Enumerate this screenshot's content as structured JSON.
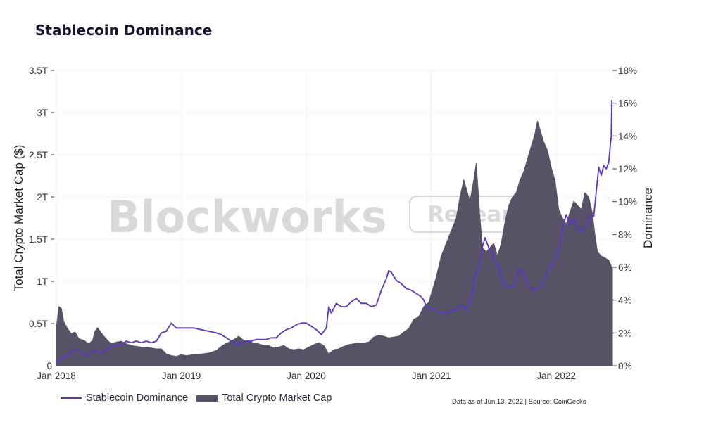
{
  "colors": {
    "market_cap": "#575367",
    "dominance": "#5b33d1",
    "grid": "#edf1f5",
    "watermark": "#d9d9d9"
  },
  "watermark": {
    "brand": "Blockworks",
    "tag": "Research"
  },
  "chart_data": {
    "type": "area+line",
    "title": "Stablecoin Dominance",
    "ylabel_left": "Total Crypto Market Cap ($)",
    "ylabel_right": "Dominance",
    "yticks_left": [
      "0",
      "0.5T",
      "1T",
      "1.5T",
      "2T",
      "2.5T",
      "3T",
      "3.5T"
    ],
    "yticks_right": [
      "0%",
      "2%",
      "4%",
      "6%",
      "8%",
      "10%",
      "12%",
      "14%",
      "16%",
      "18%"
    ],
    "xticks": [
      "Jan 2018",
      "Jan 2019",
      "Jan 2020",
      "Jan 2021",
      "Jan 2022"
    ],
    "ylim_left": [
      0,
      3.5
    ],
    "ylim_right": [
      0,
      18
    ],
    "xlim": [
      2018.0,
      2022.45
    ],
    "series": [
      {
        "name": "Total Crypto Market Cap",
        "type": "area",
        "unit": "T",
        "points": [
          [
            2018.0,
            0.45
          ],
          [
            2018.02,
            0.7
          ],
          [
            2018.04,
            0.68
          ],
          [
            2018.06,
            0.52
          ],
          [
            2018.09,
            0.44
          ],
          [
            2018.12,
            0.38
          ],
          [
            2018.15,
            0.4
          ],
          [
            2018.18,
            0.32
          ],
          [
            2018.22,
            0.3
          ],
          [
            2018.26,
            0.26
          ],
          [
            2018.29,
            0.3
          ],
          [
            2018.31,
            0.41
          ],
          [
            2018.33,
            0.45
          ],
          [
            2018.35,
            0.41
          ],
          [
            2018.38,
            0.35
          ],
          [
            2018.41,
            0.3
          ],
          [
            2018.44,
            0.26
          ],
          [
            2018.48,
            0.28
          ],
          [
            2018.52,
            0.29
          ],
          [
            2018.56,
            0.26
          ],
          [
            2018.6,
            0.24
          ],
          [
            2018.64,
            0.23
          ],
          [
            2018.68,
            0.22
          ],
          [
            2018.72,
            0.22
          ],
          [
            2018.76,
            0.21
          ],
          [
            2018.8,
            0.2
          ],
          [
            2018.84,
            0.2
          ],
          [
            2018.88,
            0.14
          ],
          [
            2018.92,
            0.12
          ],
          [
            2018.96,
            0.11
          ],
          [
            2019.0,
            0.13
          ],
          [
            2019.04,
            0.12
          ],
          [
            2019.1,
            0.13
          ],
          [
            2019.16,
            0.14
          ],
          [
            2019.22,
            0.15
          ],
          [
            2019.28,
            0.18
          ],
          [
            2019.33,
            0.24
          ],
          [
            2019.38,
            0.28
          ],
          [
            2019.42,
            0.31
          ],
          [
            2019.46,
            0.35
          ],
          [
            2019.5,
            0.3
          ],
          [
            2019.54,
            0.29
          ],
          [
            2019.58,
            0.27
          ],
          [
            2019.62,
            0.26
          ],
          [
            2019.66,
            0.24
          ],
          [
            2019.7,
            0.24
          ],
          [
            2019.74,
            0.21
          ],
          [
            2019.78,
            0.22
          ],
          [
            2019.82,
            0.24
          ],
          [
            2019.86,
            0.2
          ],
          [
            2019.9,
            0.19
          ],
          [
            2019.94,
            0.2
          ],
          [
            2019.98,
            0.19
          ],
          [
            2020.02,
            0.22
          ],
          [
            2020.06,
            0.25
          ],
          [
            2020.1,
            0.27
          ],
          [
            2020.14,
            0.24
          ],
          [
            2020.18,
            0.14
          ],
          [
            2020.22,
            0.19
          ],
          [
            2020.26,
            0.2
          ],
          [
            2020.3,
            0.23
          ],
          [
            2020.34,
            0.25
          ],
          [
            2020.38,
            0.26
          ],
          [
            2020.42,
            0.27
          ],
          [
            2020.46,
            0.27
          ],
          [
            2020.5,
            0.28
          ],
          [
            2020.54,
            0.34
          ],
          [
            2020.58,
            0.36
          ],
          [
            2020.62,
            0.35
          ],
          [
            2020.66,
            0.33
          ],
          [
            2020.7,
            0.34
          ],
          [
            2020.74,
            0.35
          ],
          [
            2020.78,
            0.4
          ],
          [
            2020.82,
            0.44
          ],
          [
            2020.86,
            0.55
          ],
          [
            2020.9,
            0.58
          ],
          [
            2020.94,
            0.7
          ],
          [
            2020.98,
            0.75
          ],
          [
            2021.02,
            0.95
          ],
          [
            2021.04,
            1.05
          ],
          [
            2021.08,
            1.3
          ],
          [
            2021.12,
            1.45
          ],
          [
            2021.16,
            1.6
          ],
          [
            2021.2,
            1.75
          ],
          [
            2021.23,
            2.0
          ],
          [
            2021.26,
            2.2
          ],
          [
            2021.28,
            2.1
          ],
          [
            2021.31,
            1.95
          ],
          [
            2021.34,
            2.2
          ],
          [
            2021.36,
            2.4
          ],
          [
            2021.39,
            1.75
          ],
          [
            2021.41,
            1.4
          ],
          [
            2021.44,
            1.35
          ],
          [
            2021.47,
            1.4
          ],
          [
            2021.5,
            1.45
          ],
          [
            2021.53,
            1.3
          ],
          [
            2021.56,
            1.45
          ],
          [
            2021.59,
            1.7
          ],
          [
            2021.62,
            1.9
          ],
          [
            2021.65,
            2.0
          ],
          [
            2021.68,
            2.05
          ],
          [
            2021.71,
            2.2
          ],
          [
            2021.74,
            2.3
          ],
          [
            2021.77,
            2.45
          ],
          [
            2021.8,
            2.6
          ],
          [
            2021.83,
            2.75
          ],
          [
            2021.85,
            2.9
          ],
          [
            2021.87,
            2.8
          ],
          [
            2021.9,
            2.65
          ],
          [
            2021.93,
            2.55
          ],
          [
            2021.96,
            2.35
          ],
          [
            2021.99,
            2.2
          ],
          [
            2022.02,
            1.85
          ],
          [
            2022.05,
            1.75
          ],
          [
            2022.08,
            1.68
          ],
          [
            2022.11,
            1.82
          ],
          [
            2022.14,
            1.95
          ],
          [
            2022.17,
            1.9
          ],
          [
            2022.2,
            1.85
          ],
          [
            2022.23,
            2.05
          ],
          [
            2022.26,
            2.0
          ],
          [
            2022.29,
            1.8
          ],
          [
            2022.31,
            1.55
          ],
          [
            2022.33,
            1.35
          ],
          [
            2022.36,
            1.3
          ],
          [
            2022.39,
            1.28
          ],
          [
            2022.42,
            1.25
          ],
          [
            2022.45,
            1.15
          ]
        ]
      },
      {
        "name": "Stablecoin Dominance",
        "type": "line",
        "unit": "%",
        "points": [
          [
            2018.0,
            0.2
          ],
          [
            2018.04,
            0.5
          ],
          [
            2018.08,
            0.6
          ],
          [
            2018.12,
            0.9
          ],
          [
            2018.16,
            1.0
          ],
          [
            2018.2,
            0.8
          ],
          [
            2018.24,
            0.6
          ],
          [
            2018.28,
            0.9
          ],
          [
            2018.32,
            0.9
          ],
          [
            2018.36,
            0.8
          ],
          [
            2018.4,
            1.0
          ],
          [
            2018.44,
            1.2
          ],
          [
            2018.48,
            1.3
          ],
          [
            2018.52,
            1.3
          ],
          [
            2018.56,
            1.5
          ],
          [
            2018.6,
            1.4
          ],
          [
            2018.64,
            1.5
          ],
          [
            2018.68,
            1.4
          ],
          [
            2018.72,
            1.5
          ],
          [
            2018.76,
            1.4
          ],
          [
            2018.8,
            1.5
          ],
          [
            2018.84,
            2.0
          ],
          [
            2018.88,
            2.1
          ],
          [
            2018.92,
            2.6
          ],
          [
            2018.96,
            2.3
          ],
          [
            2019.0,
            2.3
          ],
          [
            2019.04,
            2.3
          ],
          [
            2019.1,
            2.3
          ],
          [
            2019.16,
            2.2
          ],
          [
            2019.22,
            2.1
          ],
          [
            2019.28,
            2.0
          ],
          [
            2019.32,
            1.9
          ],
          [
            2019.36,
            1.7
          ],
          [
            2019.4,
            1.5
          ],
          [
            2019.44,
            1.3
          ],
          [
            2019.48,
            1.4
          ],
          [
            2019.52,
            1.5
          ],
          [
            2019.56,
            1.5
          ],
          [
            2019.6,
            1.6
          ],
          [
            2019.64,
            1.6
          ],
          [
            2019.68,
            1.6
          ],
          [
            2019.72,
            1.7
          ],
          [
            2019.76,
            1.7
          ],
          [
            2019.8,
            2.0
          ],
          [
            2019.84,
            2.2
          ],
          [
            2019.88,
            2.3
          ],
          [
            2019.92,
            2.5
          ],
          [
            2019.96,
            2.6
          ],
          [
            2020.0,
            2.6
          ],
          [
            2020.04,
            2.4
          ],
          [
            2020.08,
            2.2
          ],
          [
            2020.12,
            1.9
          ],
          [
            2020.16,
            2.3
          ],
          [
            2020.18,
            3.6
          ],
          [
            2020.2,
            3.2
          ],
          [
            2020.24,
            3.8
          ],
          [
            2020.28,
            3.6
          ],
          [
            2020.32,
            3.6
          ],
          [
            2020.36,
            3.9
          ],
          [
            2020.4,
            4.1
          ],
          [
            2020.44,
            3.8
          ],
          [
            2020.48,
            3.8
          ],
          [
            2020.52,
            3.6
          ],
          [
            2020.56,
            3.7
          ],
          [
            2020.6,
            4.6
          ],
          [
            2020.64,
            5.3
          ],
          [
            2020.66,
            5.8
          ],
          [
            2020.68,
            5.7
          ],
          [
            2020.72,
            5.2
          ],
          [
            2020.76,
            5.0
          ],
          [
            2020.8,
            4.7
          ],
          [
            2020.84,
            4.6
          ],
          [
            2020.88,
            4.4
          ],
          [
            2020.92,
            4.2
          ],
          [
            2020.94,
            4.0
          ],
          [
            2020.96,
            3.6
          ],
          [
            2021.0,
            3.5
          ],
          [
            2021.04,
            3.4
          ],
          [
            2021.08,
            3.2
          ],
          [
            2021.12,
            3.2
          ],
          [
            2021.16,
            3.4
          ],
          [
            2021.2,
            3.4
          ],
          [
            2021.24,
            3.7
          ],
          [
            2021.28,
            3.4
          ],
          [
            2021.32,
            4.2
          ],
          [
            2021.35,
            5.6
          ],
          [
            2021.38,
            6.0
          ],
          [
            2021.4,
            7.0
          ],
          [
            2021.43,
            7.8
          ],
          [
            2021.46,
            7.2
          ],
          [
            2021.48,
            7.0
          ],
          [
            2021.5,
            6.5
          ],
          [
            2021.54,
            6.0
          ],
          [
            2021.58,
            5.0
          ],
          [
            2021.62,
            4.8
          ],
          [
            2021.66,
            4.9
          ],
          [
            2021.7,
            5.9
          ],
          [
            2021.74,
            5.6
          ],
          [
            2021.78,
            4.8
          ],
          [
            2021.82,
            4.6
          ],
          [
            2021.86,
            4.8
          ],
          [
            2021.9,
            5.2
          ],
          [
            2021.94,
            5.9
          ],
          [
            2021.98,
            6.4
          ],
          [
            2022.02,
            7.2
          ],
          [
            2022.05,
            8.4
          ],
          [
            2022.08,
            9.2
          ],
          [
            2022.11,
            8.6
          ],
          [
            2022.14,
            9.0
          ],
          [
            2022.17,
            8.4
          ],
          [
            2022.2,
            8.2
          ],
          [
            2022.24,
            8.6
          ],
          [
            2022.27,
            9.2
          ],
          [
            2022.3,
            9.1
          ],
          [
            2022.32,
            10.6
          ],
          [
            2022.34,
            12.1
          ],
          [
            2022.36,
            11.6
          ],
          [
            2022.38,
            12.2
          ],
          [
            2022.4,
            12.0
          ],
          [
            2022.42,
            12.4
          ],
          [
            2022.44,
            14.0
          ],
          [
            2022.445,
            16.2
          ]
        ]
      }
    ],
    "source_note": "Data as of Jun 13, 2022 | Source: CoinGecko"
  }
}
